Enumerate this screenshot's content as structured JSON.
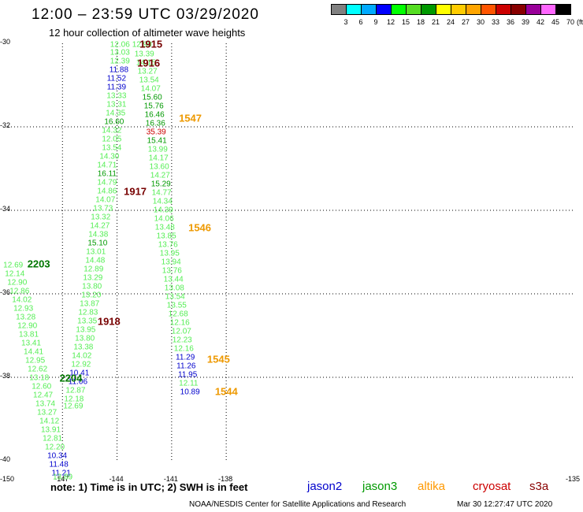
{
  "header": {
    "title": "12:00 – 23:59 UTC 03/29/2020",
    "subtitle": "12 hour collection of altimeter wave heights"
  },
  "legend": {
    "unit": "(ft)",
    "labels": [
      "3",
      "6",
      "9",
      "12",
      "15",
      "18",
      "21",
      "24",
      "27",
      "30",
      "33",
      "36",
      "39",
      "42",
      "45",
      "70"
    ],
    "colors": [
      "#808080",
      "#00ffff",
      "#00aaff",
      "#0000ff",
      "#00ff00",
      "#55dd22",
      "#009900",
      "#ffff00",
      "#ffcc00",
      "#ffa500",
      "#ff5500",
      "#cc0000",
      "#880000",
      "#990099",
      "#ff66ff",
      "#000000"
    ]
  },
  "axes": {
    "y_labels": [
      "-30",
      "-32",
      "-34",
      "-36",
      "-38",
      "-40"
    ],
    "x_labels": [
      "-150",
      "-147",
      "-144",
      "-141",
      "-138",
      "-135"
    ]
  },
  "map_data": {
    "lon_range": [
      -150,
      -135
    ],
    "lat_range": [
      -40,
      -30
    ],
    "points": [
      {
        "lon": -143.84,
        "lat": -30.04,
        "v": "12.06",
        "c": "#55ee55"
      },
      {
        "lon": -143.84,
        "lat": -30.23,
        "v": "13.03",
        "c": "#55ee55"
      },
      {
        "lon": -143.84,
        "lat": -30.43,
        "v": "12.39",
        "c": "#55ee55"
      },
      {
        "lon": -143.9,
        "lat": -30.64,
        "v": "11.88",
        "c": "#0000cc"
      },
      {
        "lon": -144.03,
        "lat": -30.85,
        "v": "11.52",
        "c": "#0000cc"
      },
      {
        "lon": -144.03,
        "lat": -31.06,
        "v": "11.39",
        "c": "#0000cc"
      },
      {
        "lon": -144.03,
        "lat": -31.26,
        "v": "13.33",
        "c": "#55ee55"
      },
      {
        "lon": -144.03,
        "lat": -31.47,
        "v": "13.31",
        "c": "#55ee55"
      },
      {
        "lon": -144.08,
        "lat": -31.68,
        "v": "14.35",
        "c": "#55ee55"
      },
      {
        "lon": -144.16,
        "lat": -31.89,
        "v": "16.60",
        "c": "#009900"
      },
      {
        "lon": -144.29,
        "lat": -32.09,
        "v": "14.32",
        "c": "#55ee55"
      },
      {
        "lon": -144.29,
        "lat": -32.3,
        "v": "12.05",
        "c": "#55ee55"
      },
      {
        "lon": -144.29,
        "lat": -32.51,
        "v": "13.54",
        "c": "#55ee55"
      },
      {
        "lon": -144.42,
        "lat": -32.72,
        "v": "14.30",
        "c": "#55ee55"
      },
      {
        "lon": -144.55,
        "lat": -32.92,
        "v": "14.71",
        "c": "#55ee55"
      },
      {
        "lon": -144.55,
        "lat": -33.13,
        "v": "16.11",
        "c": "#009900"
      },
      {
        "lon": -144.55,
        "lat": -33.34,
        "v": "14.79",
        "c": "#55ee55"
      },
      {
        "lon": -144.55,
        "lat": -33.55,
        "v": "14.86",
        "c": "#55ee55"
      },
      {
        "lon": -144.64,
        "lat": -33.75,
        "v": "14.07",
        "c": "#55ee55"
      },
      {
        "lon": -144.77,
        "lat": -33.96,
        "v": "13.73",
        "c": "#55ee55"
      },
      {
        "lon": -144.9,
        "lat": -34.17,
        "v": "13.32",
        "c": "#55ee55"
      },
      {
        "lon": -144.94,
        "lat": -34.38,
        "v": "14.27",
        "c": "#55ee55"
      },
      {
        "lon": -145.03,
        "lat": -34.58,
        "v": "14.38",
        "c": "#55ee55"
      },
      {
        "lon": -145.07,
        "lat": -34.79,
        "v": "15.10",
        "c": "#009900"
      },
      {
        "lon": -145.16,
        "lat": -35.0,
        "v": "13.01",
        "c": "#55ee55"
      },
      {
        "lon": -145.2,
        "lat": -35.21,
        "v": "14.48",
        "c": "#55ee55"
      },
      {
        "lon": -145.29,
        "lat": -35.42,
        "v": "12.89",
        "c": "#55ee55"
      },
      {
        "lon": -145.33,
        "lat": -35.62,
        "v": "13.29",
        "c": "#55ee55"
      },
      {
        "lon": -145.38,
        "lat": -35.83,
        "v": "13.80",
        "c": "#55ee55"
      },
      {
        "lon": -145.42,
        "lat": -36.04,
        "v": "13.20",
        "c": "#55ee55"
      },
      {
        "lon": -145.51,
        "lat": -36.25,
        "v": "13.87",
        "c": "#55ee55"
      },
      {
        "lon": -145.59,
        "lat": -36.45,
        "v": "12.83",
        "c": "#55ee55"
      },
      {
        "lon": -145.64,
        "lat": -36.66,
        "v": "13.35",
        "c": "#55ee55"
      },
      {
        "lon": -145.72,
        "lat": -36.87,
        "v": "13.95",
        "c": "#55ee55"
      },
      {
        "lon": -145.77,
        "lat": -37.08,
        "v": "13.80",
        "c": "#55ee55"
      },
      {
        "lon": -145.85,
        "lat": -37.28,
        "v": "13.38",
        "c": "#55ee55"
      },
      {
        "lon": -145.94,
        "lat": -37.49,
        "v": "14.02",
        "c": "#55ee55"
      },
      {
        "lon": -145.98,
        "lat": -37.7,
        "v": "12.92",
        "c": "#55ee55"
      },
      {
        "lon": -146.07,
        "lat": -37.91,
        "v": "10.41",
        "c": "#0000cc"
      },
      {
        "lon": -146.15,
        "lat": -38.11,
        "v": "11.06",
        "c": "#0000cc"
      },
      {
        "lon": -146.28,
        "lat": -38.32,
        "v": "12.87",
        "c": "#55ee55"
      },
      {
        "lon": -146.37,
        "lat": -38.53,
        "v": "12.18",
        "c": "#55ee55"
      },
      {
        "lon": -146.41,
        "lat": -38.7,
        "v": "12.69",
        "c": "#55ee55"
      },
      {
        "lon": -149.71,
        "lat": -35.32,
        "v": "12.69",
        "c": "#55ee55"
      },
      {
        "lon": -149.62,
        "lat": -35.53,
        "v": "12.14",
        "c": "#55ee55"
      },
      {
        "lon": -149.49,
        "lat": -35.74,
        "v": "12.90",
        "c": "#55ee55"
      },
      {
        "lon": -149.36,
        "lat": -35.94,
        "v": "12.86",
        "c": "#55ee55"
      },
      {
        "lon": -149.23,
        "lat": -36.15,
        "v": "14.02",
        "c": "#55ee55"
      },
      {
        "lon": -149.15,
        "lat": -36.36,
        "v": "12.93",
        "c": "#55ee55"
      },
      {
        "lon": -149.02,
        "lat": -36.57,
        "v": "13.28",
        "c": "#55ee55"
      },
      {
        "lon": -148.93,
        "lat": -36.77,
        "v": "12.90",
        "c": "#55ee55"
      },
      {
        "lon": -148.85,
        "lat": -36.98,
        "v": "13.81",
        "c": "#55ee55"
      },
      {
        "lon": -148.72,
        "lat": -37.19,
        "v": "13.41",
        "c": "#55ee55"
      },
      {
        "lon": -148.59,
        "lat": -37.4,
        "v": "14.41",
        "c": "#55ee55"
      },
      {
        "lon": -148.5,
        "lat": -37.6,
        "v": "12.95",
        "c": "#55ee55"
      },
      {
        "lon": -148.37,
        "lat": -37.81,
        "v": "12.62",
        "c": "#55ee55"
      },
      {
        "lon": -148.28,
        "lat": -38.02,
        "v": "13.18",
        "c": "#55ee55"
      },
      {
        "lon": -148.15,
        "lat": -38.23,
        "v": "12.60",
        "c": "#55ee55"
      },
      {
        "lon": -148.07,
        "lat": -38.43,
        "v": "12.47",
        "c": "#55ee55"
      },
      {
        "lon": -147.94,
        "lat": -38.64,
        "v": "13.74",
        "c": "#55ee55"
      },
      {
        "lon": -147.85,
        "lat": -38.85,
        "v": "13.27",
        "c": "#55ee55"
      },
      {
        "lon": -147.72,
        "lat": -39.06,
        "v": "14.12",
        "c": "#55ee55"
      },
      {
        "lon": -147.64,
        "lat": -39.26,
        "v": "13.91",
        "c": "#55ee55"
      },
      {
        "lon": -147.55,
        "lat": -39.47,
        "v": "12.81",
        "c": "#55ee55"
      },
      {
        "lon": -147.42,
        "lat": -39.68,
        "v": "12.20",
        "c": "#55ee55"
      },
      {
        "lon": -147.29,
        "lat": -39.89,
        "v": "10.34",
        "c": "#0000cc"
      },
      {
        "lon": -147.2,
        "lat": -40.09,
        "v": "11.48",
        "c": "#0000cc"
      },
      {
        "lon": -147.07,
        "lat": -40.3,
        "v": "11.21",
        "c": "#0000cc"
      },
      {
        "lon": -146.99,
        "lat": -40.4,
        "v": "13.89",
        "c": "#55ee55"
      },
      {
        "lon": -142.63,
        "lat": -30.04,
        "v": "12.90",
        "c": "#55ee55"
      },
      {
        "lon": -142.5,
        "lat": -30.26,
        "v": "13.39",
        "c": "#55ee55"
      },
      {
        "lon": -142.41,
        "lat": -30.47,
        "v": "14.15",
        "c": "#55ee55"
      },
      {
        "lon": -142.33,
        "lat": -30.68,
        "v": "13.27",
        "c": "#55ee55"
      },
      {
        "lon": -142.24,
        "lat": -30.89,
        "v": "13.54",
        "c": "#55ee55"
      },
      {
        "lon": -142.15,
        "lat": -31.09,
        "v": "14.07",
        "c": "#55ee55"
      },
      {
        "lon": -142.07,
        "lat": -31.3,
        "v": "15.60",
        "c": "#009900"
      },
      {
        "lon": -141.98,
        "lat": -31.51,
        "v": "15.76",
        "c": "#009900"
      },
      {
        "lon": -141.94,
        "lat": -31.72,
        "v": "16.46",
        "c": "#009900"
      },
      {
        "lon": -141.89,
        "lat": -31.92,
        "v": "16.36",
        "c": "#009900"
      },
      {
        "lon": -141.85,
        "lat": -32.13,
        "v": "35.39",
        "c": "#cc0000"
      },
      {
        "lon": -141.81,
        "lat": -32.34,
        "v": "15.41",
        "c": "#009900"
      },
      {
        "lon": -141.76,
        "lat": -32.55,
        "v": "13.99",
        "c": "#55ee55"
      },
      {
        "lon": -141.72,
        "lat": -32.75,
        "v": "14.17",
        "c": "#55ee55"
      },
      {
        "lon": -141.68,
        "lat": -32.96,
        "v": "13.60",
        "c": "#55ee55"
      },
      {
        "lon": -141.63,
        "lat": -33.17,
        "v": "14.27",
        "c": "#55ee55"
      },
      {
        "lon": -141.59,
        "lat": -33.38,
        "v": "15.29",
        "c": "#009900"
      },
      {
        "lon": -141.55,
        "lat": -33.58,
        "v": "14.77",
        "c": "#55ee55"
      },
      {
        "lon": -141.5,
        "lat": -33.79,
        "v": "14.34",
        "c": "#55ee55"
      },
      {
        "lon": -141.46,
        "lat": -34.0,
        "v": "14.39",
        "c": "#55ee55"
      },
      {
        "lon": -141.42,
        "lat": -34.21,
        "v": "14.06",
        "c": "#55ee55"
      },
      {
        "lon": -141.37,
        "lat": -34.42,
        "v": "13.48",
        "c": "#55ee55"
      },
      {
        "lon": -141.29,
        "lat": -34.62,
        "v": "13.85",
        "c": "#55ee55"
      },
      {
        "lon": -141.2,
        "lat": -34.83,
        "v": "13.76",
        "c": "#55ee55"
      },
      {
        "lon": -141.11,
        "lat": -35.04,
        "v": "13.95",
        "c": "#55ee55"
      },
      {
        "lon": -141.03,
        "lat": -35.25,
        "v": "13.94",
        "c": "#55ee55"
      },
      {
        "lon": -140.98,
        "lat": -35.45,
        "v": "13.76",
        "c": "#55ee55"
      },
      {
        "lon": -140.9,
        "lat": -35.66,
        "v": "13.44",
        "c": "#55ee55"
      },
      {
        "lon": -140.85,
        "lat": -35.87,
        "v": "13.08",
        "c": "#55ee55"
      },
      {
        "lon": -140.81,
        "lat": -36.08,
        "v": "13.54",
        "c": "#55ee55"
      },
      {
        "lon": -140.72,
        "lat": -36.28,
        "v": "13.55",
        "c": "#55ee55"
      },
      {
        "lon": -140.64,
        "lat": -36.49,
        "v": "12.68",
        "c": "#55ee55"
      },
      {
        "lon": -140.55,
        "lat": -36.7,
        "v": "12.16",
        "c": "#55ee55"
      },
      {
        "lon": -140.46,
        "lat": -36.91,
        "v": "12.07",
        "c": "#55ee55"
      },
      {
        "lon": -140.42,
        "lat": -37.11,
        "v": "12.23",
        "c": "#55ee55"
      },
      {
        "lon": -140.33,
        "lat": -37.32,
        "v": "12.16",
        "c": "#55ee55"
      },
      {
        "lon": -140.25,
        "lat": -37.53,
        "v": "11.29",
        "c": "#0000cc"
      },
      {
        "lon": -140.2,
        "lat": -37.74,
        "v": "11.26",
        "c": "#0000cc"
      },
      {
        "lon": -140.12,
        "lat": -37.94,
        "v": "11.95",
        "c": "#0000cc"
      },
      {
        "lon": -140.07,
        "lat": -38.15,
        "v": "12.11",
        "c": "#55ee55"
      },
      {
        "lon": -139.99,
        "lat": -38.36,
        "v": "10.89",
        "c": "#0000cc"
      }
    ],
    "pass_labels": [
      {
        "lon": -142.76,
        "lat": -30.02,
        "text": "1915",
        "c": "#770000"
      },
      {
        "lon": -142.89,
        "lat": -30.47,
        "text": "1916",
        "c": "#770000"
      },
      {
        "lon": -140.6,
        "lat": -31.8,
        "text": "1547",
        "c": "#ee9900"
      },
      {
        "lon": -143.63,
        "lat": -33.55,
        "text": "1917",
        "c": "#770000"
      },
      {
        "lon": -140.08,
        "lat": -34.42,
        "text": "1546",
        "c": "#ee9900"
      },
      {
        "lon": -148.93,
        "lat": -35.28,
        "text": "2203",
        "c": "#007700"
      },
      {
        "lon": -145.07,
        "lat": -36.66,
        "text": "1918",
        "c": "#770000"
      },
      {
        "lon": -147.16,
        "lat": -38.02,
        "text": "2204",
        "c": "#007700"
      },
      {
        "lon": -139.05,
        "lat": -37.57,
        "text": "1545",
        "c": "#ee9900"
      },
      {
        "lon": -138.62,
        "lat": -38.34,
        "text": "1544",
        "c": "#ee9900"
      }
    ]
  },
  "footer": {
    "note": "note: 1) Time is in UTC; 2) SWH is in feet",
    "satellites": [
      {
        "name": "jason2",
        "color": "#0000cc"
      },
      {
        "name": "jason3",
        "color": "#009900"
      },
      {
        "name": "altika",
        "color": "#ff9900"
      },
      {
        "name": "cryosat",
        "color": "#cc0000"
      },
      {
        "name": "s3a",
        "color": "#880000"
      }
    ],
    "credit": "NOAA/NESDIS Center for Satellite Applications and Research",
    "timestamp": "Mar 30 12:27:47 UTC 2020"
  }
}
